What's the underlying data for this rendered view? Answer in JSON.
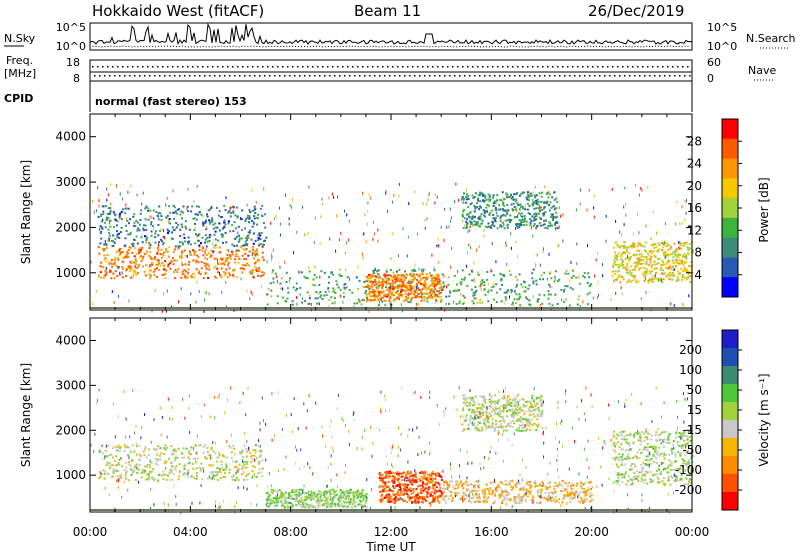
{
  "header": {
    "station": "Hokkaido West (fitACF)",
    "beam": "Beam 11",
    "date": "26/Dec/2019"
  },
  "left_labels": {
    "nsky": "N.Sky",
    "freq": "Freq.",
    "freq_unit": "[MHz]",
    "cpid": "CPID"
  },
  "right_labels": {
    "nsearch": "N.Search",
    "nave": "Nave"
  },
  "noise_panel": {
    "left_ticks": [
      "10^5",
      "10^0"
    ],
    "right_ticks": [
      "10^5",
      "10^0"
    ]
  },
  "freq_panel": {
    "left_ticks": [
      "18",
      "8"
    ],
    "right_ticks": [
      "60",
      "0"
    ]
  },
  "cpid_text": "normal (fast stereo) 153",
  "x_axis": {
    "title": "Time UT",
    "ticks": [
      "00:00",
      "04:00",
      "08:00",
      "12:00",
      "16:00",
      "20:00",
      "00:00"
    ]
  },
  "range_axis": {
    "title": "Slant Range [km]",
    "ticks": [
      "1000",
      "2000",
      "3000",
      "4000"
    ]
  },
  "power_scale": {
    "label": "Power [dB]",
    "ticks": [
      "28",
      "24",
      "20",
      "16",
      "12",
      "8",
      "4"
    ],
    "colors": [
      "#ff0000",
      "#ff5a00",
      "#ff9600",
      "#f5c800",
      "#a0d23c",
      "#3cb43c",
      "#3c8c78",
      "#285ab4",
      "#0000ff"
    ]
  },
  "velocity_scale": {
    "label": "Velocity [m s⁻¹]",
    "ticks": [
      "200",
      "100",
      "50",
      "15",
      "-15",
      "-50",
      "-100",
      "-200"
    ],
    "colors": [
      "#1e1ec8",
      "#1e50b4",
      "#3c8c6e",
      "#50c83c",
      "#a0d23c",
      "#c8c8c8",
      "#f5b400",
      "#ff8c00",
      "#ff5000",
      "#ff0000"
    ]
  },
  "chart_data": [
    {
      "type": "heatmap",
      "name": "power",
      "x_range_hours": [
        0,
        24
      ],
      "y_range_km": [
        180,
        4500
      ],
      "xlabel": "Time UT",
      "ylabel": "Slant Range [km]",
      "colorbar_label": "Power [dB]",
      "colorbar_range": [
        0,
        30
      ],
      "regions": [
        {
          "t": [
            0.3,
            6.9
          ],
          "r": [
            900,
            1600
          ],
          "level": 24
        },
        {
          "t": [
            0.3,
            7.0
          ],
          "r": [
            1600,
            2500
          ],
          "level": 6
        },
        {
          "t": [
            7.0,
            20.0
          ],
          "r": [
            300,
            1100
          ],
          "level": 10
        },
        {
          "t": [
            11.0,
            14.0
          ],
          "r": [
            400,
            1000
          ],
          "level": 24
        },
        {
          "t": [
            14.8,
            18.6
          ],
          "r": [
            2000,
            2800
          ],
          "level": 8
        },
        {
          "t": [
            20.8,
            24.0
          ],
          "r": [
            800,
            1700
          ],
          "level": 18
        }
      ]
    },
    {
      "type": "heatmap",
      "name": "velocity",
      "x_range_hours": [
        0,
        24
      ],
      "y_range_km": [
        180,
        4500
      ],
      "xlabel": "Time UT",
      "ylabel": "Slant Range [km]",
      "colorbar_label": "Velocity [m s⁻¹]",
      "colorbar_range": [
        -200,
        200
      ],
      "regions": [
        {
          "t": [
            0.3,
            6.9
          ],
          "r": [
            900,
            1700
          ],
          "level": 0
        },
        {
          "t": [
            7.0,
            11.0
          ],
          "r": [
            300,
            700
          ],
          "level": 30
        },
        {
          "t": [
            11.5,
            14.0
          ],
          "r": [
            400,
            1100
          ],
          "level": -150
        },
        {
          "t": [
            14.0,
            20.0
          ],
          "r": [
            400,
            900
          ],
          "level": -60
        },
        {
          "t": [
            14.8,
            18.0
          ],
          "r": [
            2000,
            2800
          ],
          "level": 0
        },
        {
          "t": [
            20.8,
            24.0
          ],
          "r": [
            800,
            2000
          ],
          "level": 10
        }
      ]
    }
  ]
}
